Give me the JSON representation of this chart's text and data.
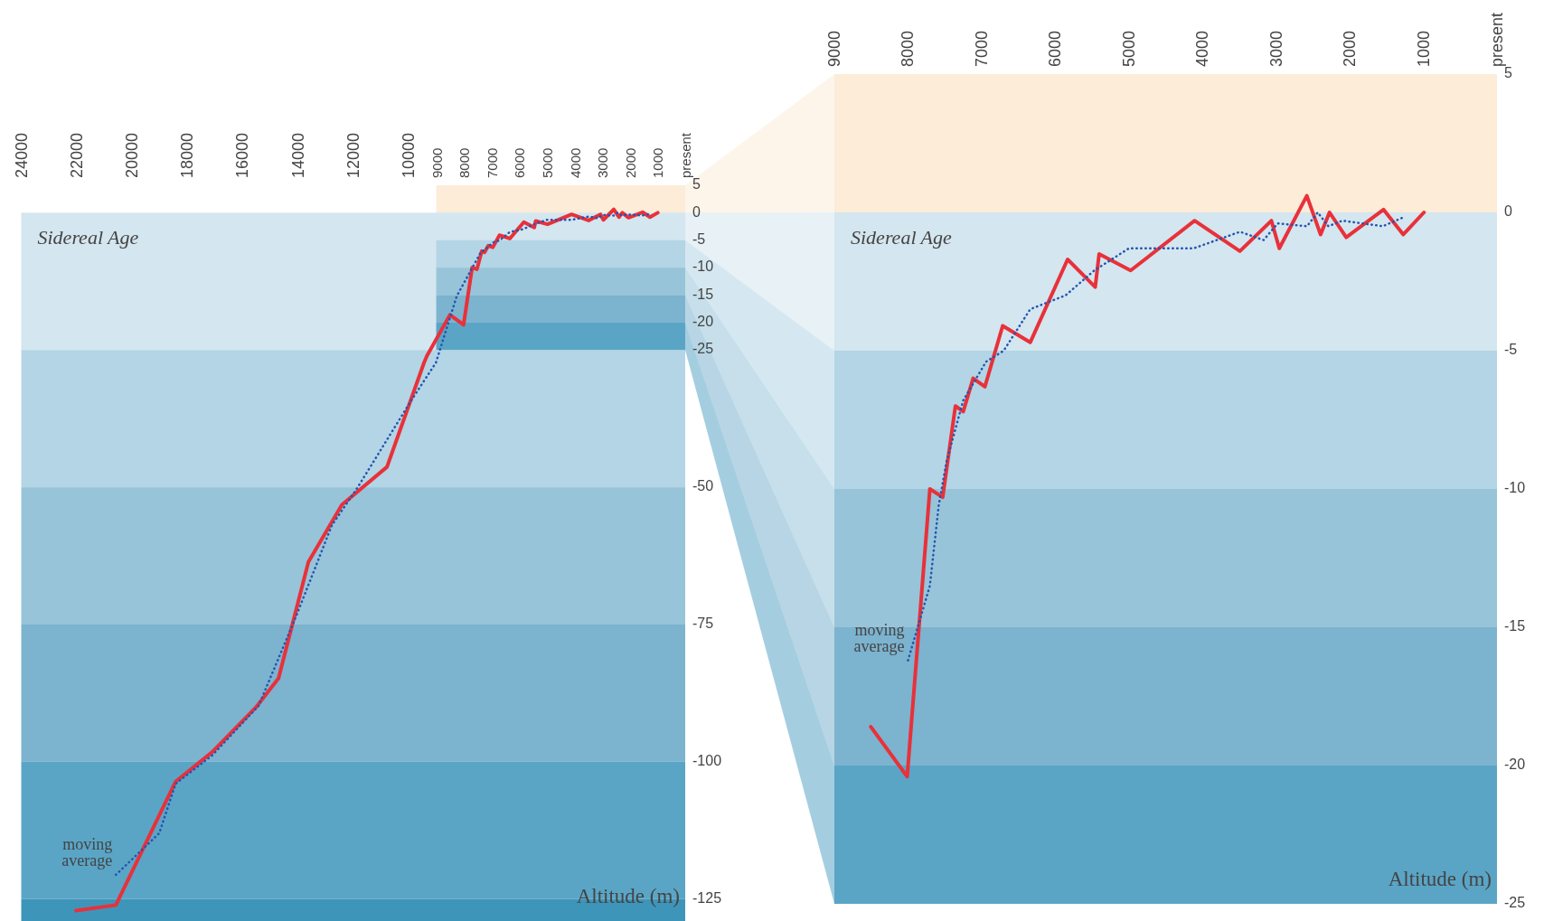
{
  "chart_data": [
    {
      "type": "line",
      "ylabel": "Altitude (m)",
      "annotations": [
        "Sidereal Age"
      ],
      "xlim": [
        24000,
        0
      ],
      "xticks": [
        24000,
        22000,
        20000,
        18000,
        16000,
        14000,
        12000,
        10000,
        9000,
        8000,
        7000,
        6000,
        5000,
        4000,
        3000,
        2000,
        1000,
        {
          "value": 0,
          "label": "present"
        }
      ],
      "ylim": [
        -129,
        5
      ],
      "yticks": [
        5,
        0,
        -5,
        -10,
        -15,
        -20,
        -25,
        -50,
        -75,
        -100,
        -125
      ],
      "bands": [
        {
          "axis": "y",
          "from": 0,
          "to": -25,
          "color": "#d4e6ef"
        },
        {
          "axis": "y",
          "from": -25,
          "to": -50,
          "color": "#b3d5e5"
        },
        {
          "axis": "y",
          "from": -50,
          "to": -75,
          "color": "#97c4d9"
        },
        {
          "axis": "y",
          "from": -75,
          "to": -100,
          "color": "#7cb3cf"
        },
        {
          "axis": "y",
          "from": -100,
          "to": -125,
          "color": "#5aa5c6"
        },
        {
          "axis": "y",
          "from": -125,
          "to": -129,
          "color": "#3e95ba"
        }
      ],
      "series": [
        {
          "color": "#e8313a",
          "line_style": "solid",
          "x": [
            22020,
            20580,
            18420,
            17090,
            15520,
            14700,
            13620,
            12410,
            10780,
            9440,
            9340,
            8505,
            8011,
            7703,
            7529,
            7356,
            7250,
            7115,
            6955,
            6714,
            6340,
            5832,
            5457,
            5404,
            4976,
            4107,
            3492,
            3064,
            2957,
            2583,
            2396,
            2275,
            2048,
            1540,
            1273,
            992
          ],
          "values": [
            -127.1,
            -126.1,
            -103.6,
            -98.2,
            -90.1,
            -84.8,
            -63.6,
            -53.2,
            -46.3,
            -27.3,
            -26.1,
            -18.6,
            -20.4,
            -10.0,
            -10.3,
            -7.0,
            -7.2,
            -6.0,
            -6.3,
            -4.1,
            -4.7,
            -1.7,
            -2.7,
            -1.5,
            -2.1,
            -0.3,
            -1.4,
            -0.3,
            -1.3,
            0.6,
            -0.8,
            0.0,
            -0.9,
            0.1,
            -0.8,
            0.0
          ]
        },
        {
          "name": "moving average",
          "color": "#2455b0",
          "line_style": "dotted",
          "x": [
            20580,
            19010,
            18420,
            17090,
            15420,
            14080,
            12770,
            11850,
            9930,
            9010,
            8260,
            7410,
            6940,
            6700,
            6340,
            5860,
            5470,
            5000,
            4120,
            3490,
            3170,
            2980,
            2580,
            2435,
            2290,
            2100,
            1550,
            1290
          ],
          "values": [
            -120.6,
            -113,
            -104,
            -98.8,
            -89.8,
            -73.7,
            -56.9,
            -50.1,
            -34.4,
            -27.3,
            -15.2,
            -7.4,
            -5.4,
            -5.0,
            -3.5,
            -3.0,
            -2.1,
            -1.3,
            -1.3,
            -0.7,
            -1.0,
            -0.4,
            -0.5,
            0.0,
            -0.5,
            -0.3,
            -0.5,
            -0.2
          ]
        }
      ]
    },
    {
      "type": "line",
      "ylabel": "Altitude (m)",
      "annotations": [
        "Sidereal Age"
      ],
      "xlim": [
        9000,
        0
      ],
      "xticks": [
        9000,
        8000,
        7000,
        6000,
        5000,
        4000,
        3000,
        2000,
        1000,
        {
          "value": 0,
          "label": "present"
        }
      ],
      "ylim": [
        -25,
        5
      ],
      "yticks": [
        5,
        0,
        -5,
        -10,
        -15,
        -20,
        -25
      ],
      "bands": [
        {
          "axis": "y",
          "from": 5,
          "to": 0,
          "color": "#fcecd8"
        },
        {
          "axis": "y",
          "from": 0,
          "to": -5,
          "color": "#d4e6ef"
        },
        {
          "axis": "y",
          "from": -5,
          "to": -10,
          "color": "#b3d5e5"
        },
        {
          "axis": "y",
          "from": -10,
          "to": -15,
          "color": "#97c4d9"
        },
        {
          "axis": "y",
          "from": -15,
          "to": -20,
          "color": "#7cb3cf"
        },
        {
          "axis": "y",
          "from": -20,
          "to": -25,
          "color": "#5aa5c6"
        }
      ],
      "series": [
        {
          "color": "#e8313a",
          "line_style": "solid",
          "x": [
            8505,
            8011,
            7703,
            7529,
            7356,
            7250,
            7115,
            6955,
            6714,
            6340,
            5832,
            5457,
            5404,
            4976,
            4107,
            3492,
            3064,
            2957,
            2583,
            2396,
            2275,
            2048,
            1540,
            1273,
            992
          ],
          "values": [
            -18.6,
            -20.4,
            -10.0,
            -10.3,
            -7.0,
            -7.2,
            -6.0,
            -6.3,
            -4.1,
            -4.7,
            -1.7,
            -2.7,
            -1.5,
            -2.1,
            -0.3,
            -1.4,
            -0.3,
            -1.3,
            0.6,
            -0.8,
            0.0,
            -0.9,
            0.1,
            -0.8,
            0.0
          ]
        },
        {
          "name": "moving average",
          "color": "#2455b0",
          "line_style": "dotted",
          "x": [
            8000,
            7703,
            7583,
            7476,
            7250,
            6940,
            6700,
            6340,
            5860,
            5470,
            5000,
            4120,
            3490,
            3170,
            2980,
            2580,
            2435,
            2290,
            2100,
            1550,
            1290
          ],
          "values": [
            -16.2,
            -13.5,
            -10.6,
            -9.0,
            -6.8,
            -5.4,
            -5.0,
            -3.5,
            -3.0,
            -2.1,
            -1.3,
            -1.3,
            -0.7,
            -1.0,
            -0.4,
            -0.5,
            0.0,
            -0.5,
            -0.3,
            -0.5,
            -0.2
          ]
        }
      ]
    }
  ]
}
